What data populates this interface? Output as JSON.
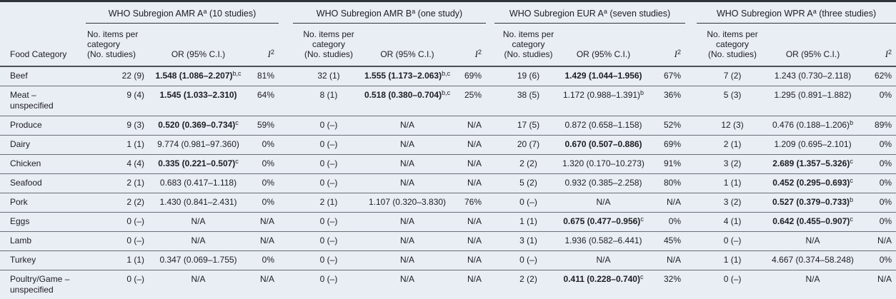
{
  "colors": {
    "background": "#e9edf4",
    "heavy_rule": "#30353b",
    "mid_rule": "#4a5056",
    "row_rule": "#6a7077",
    "text": "#1c1e21"
  },
  "table": {
    "first_col_header": "Food Category",
    "groups": [
      {
        "title": "WHO Subregion AMR A",
        "sup": "a",
        "tail": " (10 studies)"
      },
      {
        "title": "WHO Subregion AMR B",
        "sup": "a",
        "tail": " (one study)"
      },
      {
        "title": "WHO Subregion EUR A",
        "sup": "a",
        "tail": " (seven studies)"
      },
      {
        "title": "WHO Subregion WPR A",
        "sup": "a",
        "tail": " (three studies)"
      }
    ],
    "col_headers": {
      "items_line1": "No. items per category",
      "items_line2": "(No. studies)",
      "or": "OR (95% C.I.)",
      "i2_base": "I",
      "i2_sup": "2"
    },
    "rows": [
      {
        "category": "Beef",
        "cells": [
          {
            "n": "22 (9)",
            "or": "1.548 (1.086–2.207)",
            "sup": "b,c",
            "bold": true,
            "i2": "81%"
          },
          {
            "n": "32 (1)",
            "or": "1.555 (1.173–2.063)",
            "sup": "b,c",
            "bold": true,
            "i2": "69%"
          },
          {
            "n": "19 (6)",
            "or": "1.429 (1.044–1.956)",
            "sup": "",
            "bold": true,
            "i2": "67%"
          },
          {
            "n": "7 (2)",
            "or": "1.243 (0.730–2.118)",
            "sup": "",
            "bold": false,
            "i2": "62%"
          }
        ]
      },
      {
        "category": "Meat – unspecified",
        "cells": [
          {
            "n": "9 (4)",
            "or": "1.545 (1.033–2.310)",
            "sup": "",
            "bold": true,
            "i2": "64%"
          },
          {
            "n": "8 (1)",
            "or": "0.518 (0.380–0.704)",
            "sup": "b,c",
            "bold": true,
            "i2": "25%"
          },
          {
            "n": "38 (5)",
            "or": "1.172 (0.988–1.391)",
            "sup": "b",
            "bold": false,
            "i2": "36%"
          },
          {
            "n": "5 (3)",
            "or": "1.295 (0.891–1.882)",
            "sup": "",
            "bold": false,
            "i2": "0%"
          }
        ]
      },
      {
        "category": "Produce",
        "cells": [
          {
            "n": "9 (3)",
            "or": "0.520 (0.369–0.734)",
            "sup": "c",
            "bold": true,
            "i2": "59%"
          },
          {
            "n": "0 (–)",
            "or": "N/A",
            "sup": "",
            "bold": false,
            "i2": "N/A"
          },
          {
            "n": "17 (5)",
            "or": "0.872 (0.658–1.158)",
            "sup": "",
            "bold": false,
            "i2": "52%"
          },
          {
            "n": "12 (3)",
            "or": "0.476 (0.188–1.206)",
            "sup": "b",
            "bold": false,
            "i2": "89%"
          }
        ]
      },
      {
        "category": "Dairy",
        "cells": [
          {
            "n": "1 (1)",
            "or": "9.774 (0.981–97.360)",
            "sup": "",
            "bold": false,
            "i2": "0%"
          },
          {
            "n": "0 (–)",
            "or": "N/A",
            "sup": "",
            "bold": false,
            "i2": "N/A"
          },
          {
            "n": "20 (7)",
            "or": "0.670 (0.507–0.886)",
            "sup": "",
            "bold": true,
            "i2": "69%"
          },
          {
            "n": "2 (1)",
            "or": "1.209 (0.695–2.101)",
            "sup": "",
            "bold": false,
            "i2": "0%"
          }
        ]
      },
      {
        "category": "Chicken",
        "cells": [
          {
            "n": "4 (4)",
            "or": "0.335 (0.221–0.507)",
            "sup": "c",
            "bold": true,
            "i2": "0%"
          },
          {
            "n": "0 (–)",
            "or": "N/A",
            "sup": "",
            "bold": false,
            "i2": "N/A"
          },
          {
            "n": "2 (2)",
            "or": "1.320 (0.170–10.273)",
            "sup": "",
            "bold": false,
            "i2": "91%"
          },
          {
            "n": "3 (2)",
            "or": "2.689 (1.357–5.326)",
            "sup": "c",
            "bold": true,
            "i2": "0%"
          }
        ]
      },
      {
        "category": "Seafood",
        "cells": [
          {
            "n": "2 (1)",
            "or": "0.683 (0.417–1.118)",
            "sup": "",
            "bold": false,
            "i2": "0%"
          },
          {
            "n": "0 (–)",
            "or": "N/A",
            "sup": "",
            "bold": false,
            "i2": "N/A"
          },
          {
            "n": "5 (2)",
            "or": "0.932 (0.385–2.258)",
            "sup": "",
            "bold": false,
            "i2": "80%"
          },
          {
            "n": "1 (1)",
            "or": "0.452 (0.295–0.693)",
            "sup": "c",
            "bold": true,
            "i2": "0%"
          }
        ]
      },
      {
        "category": "Pork",
        "cells": [
          {
            "n": "2 (2)",
            "or": "1.430 (0.841–2.431)",
            "sup": "",
            "bold": false,
            "i2": "0%"
          },
          {
            "n": "2 (1)",
            "or": "1.107 (0.320–3.830)",
            "sup": "",
            "bold": false,
            "i2": "76%"
          },
          {
            "n": "0 (–)",
            "or": "N/A",
            "sup": "",
            "bold": false,
            "i2": "N/A"
          },
          {
            "n": "3 (2)",
            "or": "0.527 (0.379–0.733)",
            "sup": "b",
            "bold": true,
            "i2": "0%"
          }
        ]
      },
      {
        "category": "Eggs",
        "cells": [
          {
            "n": "0 (–)",
            "or": "N/A",
            "sup": "",
            "bold": false,
            "i2": "N/A"
          },
          {
            "n": "0 (–)",
            "or": "N/A",
            "sup": "",
            "bold": false,
            "i2": "N/A"
          },
          {
            "n": "1 (1)",
            "or": "0.675 (0.477–0.956)",
            "sup": "c",
            "bold": true,
            "i2": "0%"
          },
          {
            "n": "4 (1)",
            "or": "0.642 (0.455–0.907)",
            "sup": "c",
            "bold": true,
            "i2": "0%"
          }
        ]
      },
      {
        "category": "Lamb",
        "cells": [
          {
            "n": "0 (–)",
            "or": "N/A",
            "sup": "",
            "bold": false,
            "i2": "N/A"
          },
          {
            "n": "0 (–)",
            "or": "N/A",
            "sup": "",
            "bold": false,
            "i2": "N/A"
          },
          {
            "n": "3 (1)",
            "or": "1.936 (0.582–6.441)",
            "sup": "",
            "bold": false,
            "i2": "45%"
          },
          {
            "n": "0 (–)",
            "or": "N/A",
            "sup": "",
            "bold": false,
            "i2": "N/A"
          }
        ]
      },
      {
        "category": "Turkey",
        "cells": [
          {
            "n": "1 (1)",
            "or": "0.347 (0.069–1.755)",
            "sup": "",
            "bold": false,
            "i2": "0%"
          },
          {
            "n": "0 (–)",
            "or": "N/A",
            "sup": "",
            "bold": false,
            "i2": "N/A"
          },
          {
            "n": "0 (–)",
            "or": "N/A",
            "sup": "",
            "bold": false,
            "i2": "N/A"
          },
          {
            "n": "1 (1)",
            "or": "4.667 (0.374–58.248)",
            "sup": "",
            "bold": false,
            "i2": "0%"
          }
        ]
      },
      {
        "category": "Poultry/Game – unspecified",
        "cells": [
          {
            "n": "0 (–)",
            "or": "N/A",
            "sup": "",
            "bold": false,
            "i2": "N/A"
          },
          {
            "n": "0 (–)",
            "or": "N/A",
            "sup": "",
            "bold": false,
            "i2": "N/A"
          },
          {
            "n": "2 (2)",
            "or": "0.411 (0.228–0.740)",
            "sup": "c",
            "bold": true,
            "i2": "32%"
          },
          {
            "n": "0 (–)",
            "or": "N/A",
            "sup": "",
            "bold": false,
            "i2": "N/A"
          }
        ]
      }
    ]
  }
}
